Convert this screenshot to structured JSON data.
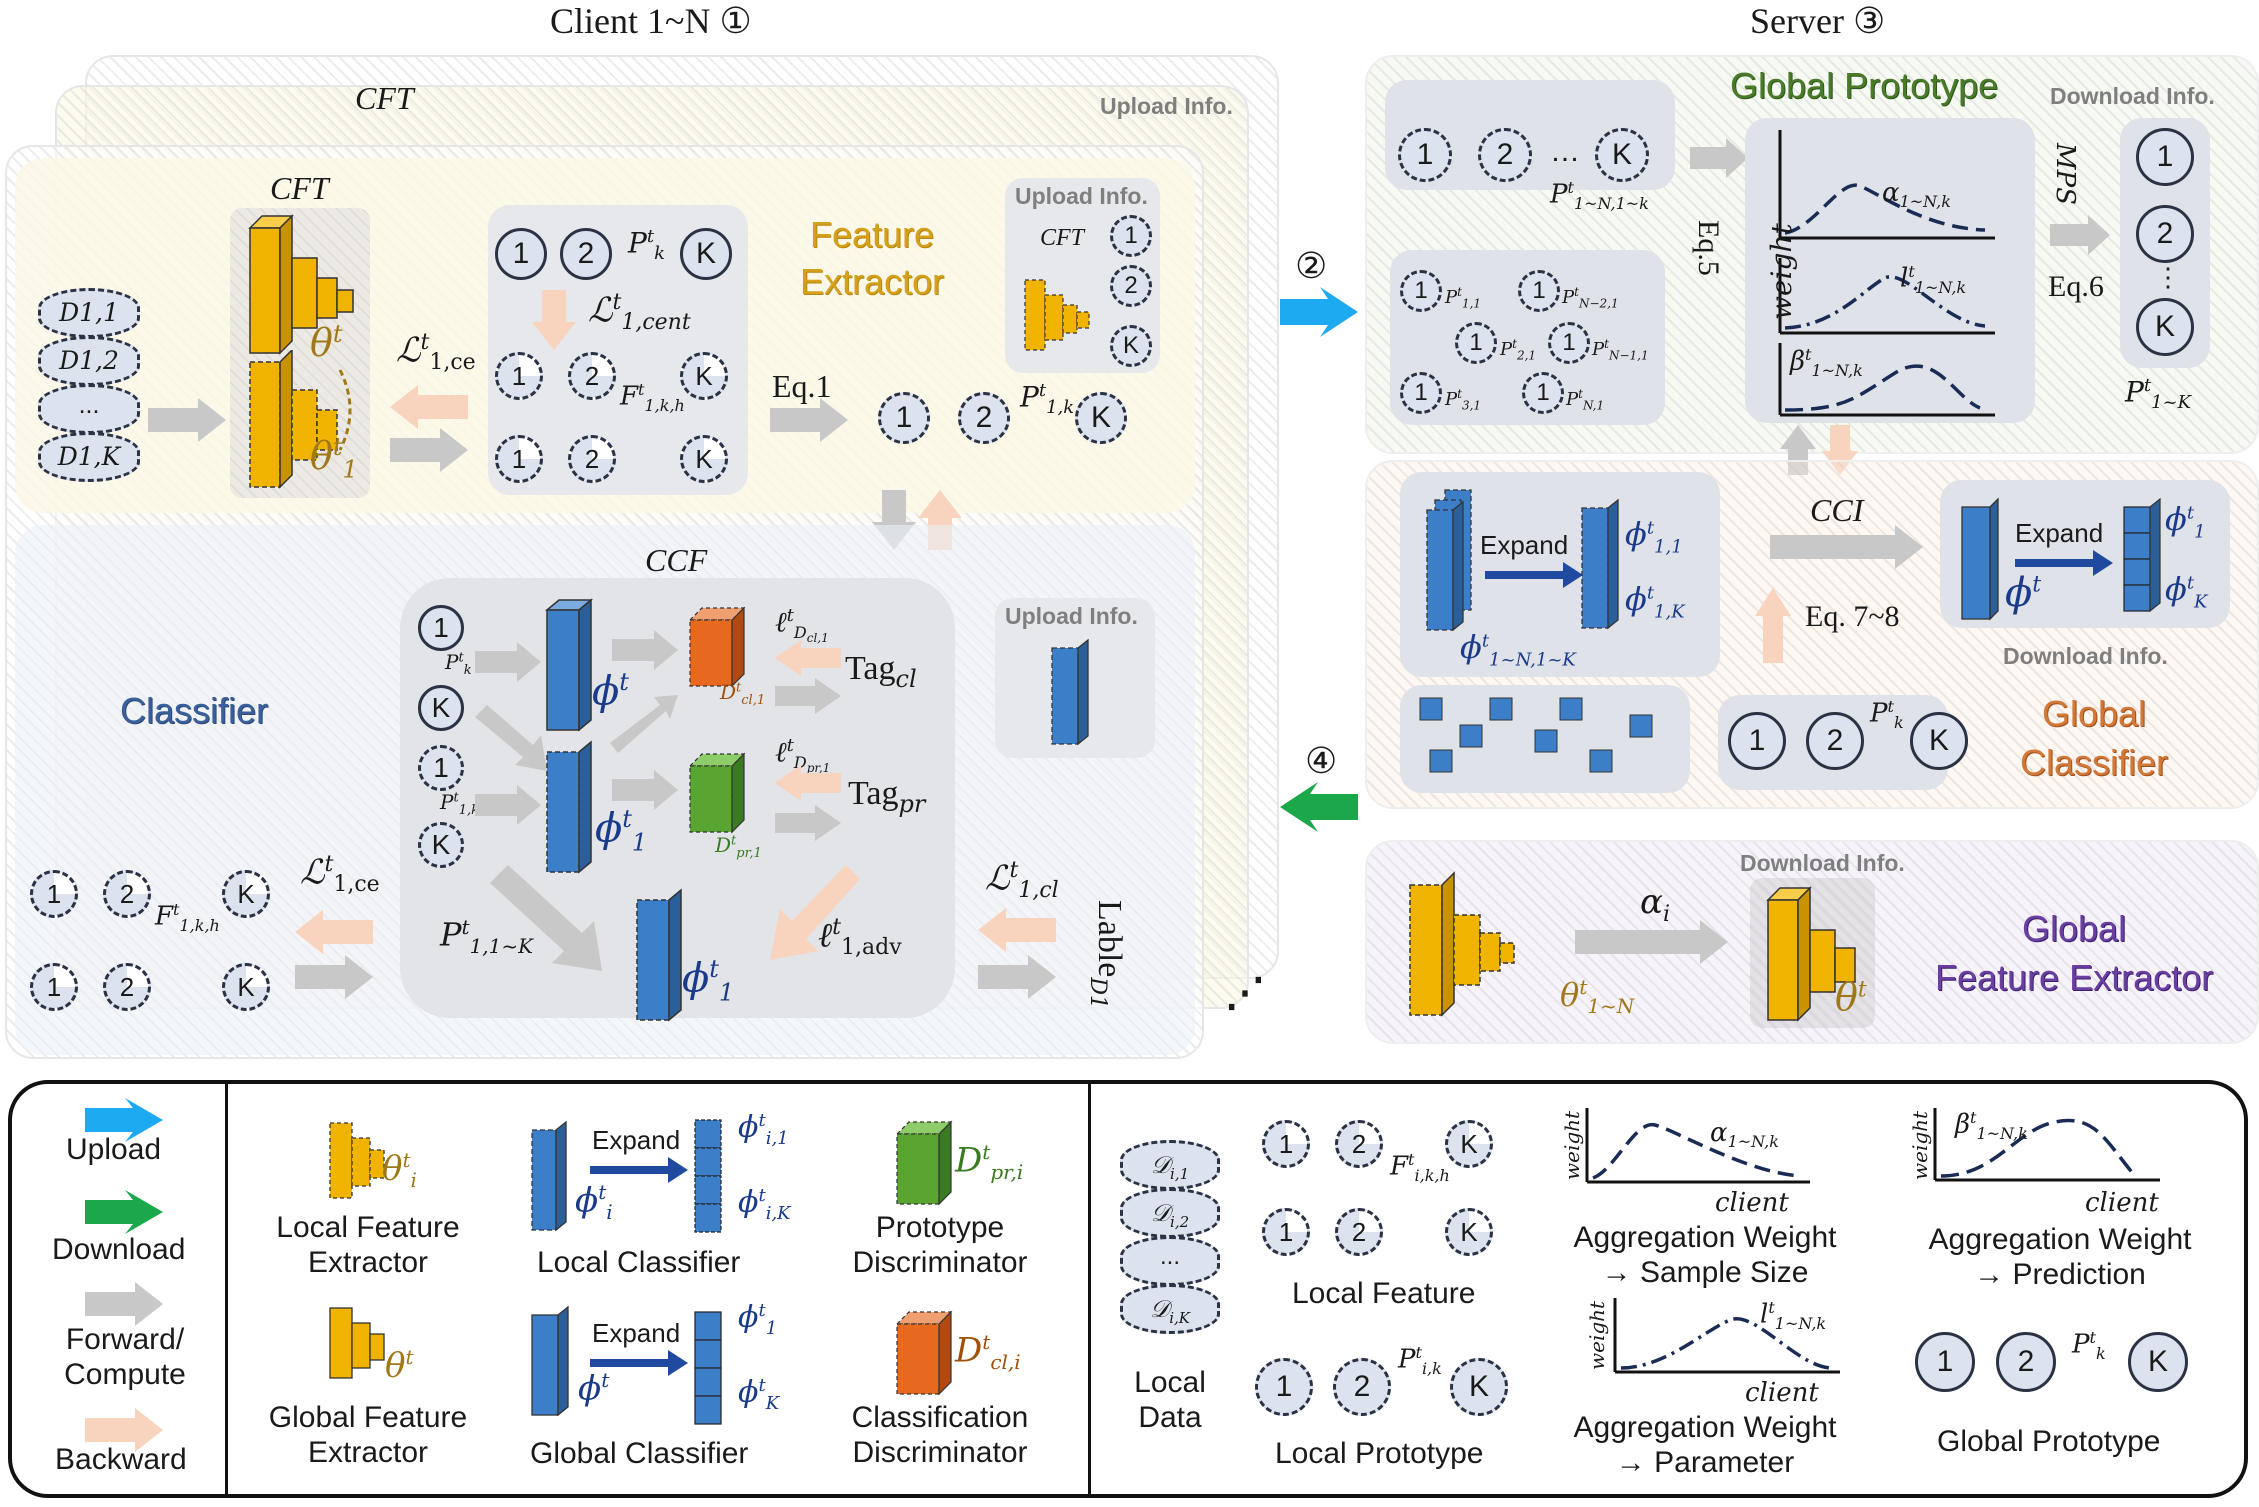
{
  "headings": {
    "client": "Client 1~N ①",
    "server": "Server ③",
    "step2": "②",
    "step4": "④"
  },
  "client": {
    "cft_back": "CFT",
    "cft": "CFT",
    "upload_info": "Upload Info.",
    "upload_info_cft": "CFT",
    "feature_extractor_1": "Feature",
    "feature_extractor_2": "Extractor",
    "eq1": "Eq.1",
    "ccf": "CCF",
    "classifier": "Classifier",
    "upload_info_2": "Upload Info.",
    "tag_cl": "Tag",
    "tag_cl_sub": "cl",
    "tag_pr": "Tag",
    "tag_pr_sub": "pr",
    "lable": "Lable",
    "lable_sub": "D1",
    "ellipsis": "⋰",
    "data_labels": [
      "D1,1",
      "D1,2",
      "...",
      "D1,K"
    ],
    "theta_t": "θ",
    "theta_1": "θ",
    "l_ce": "ℒ",
    "l_cent": "ℒ",
    "l_cl": "ℒ",
    "l_adv": "ℓ",
    "l_dcl": "ℓ",
    "l_dpr": "ℓ"
  },
  "server": {
    "global_prototype": "Global Prototype",
    "download_info_1": "Download Info.",
    "eq5": "Eq.5",
    "eq6": "Eq.6",
    "mps": "MPS",
    "weight": "weight",
    "alpha": "α",
    "l_param": "l",
    "beta": "β",
    "cci": "CCI",
    "expand": "Expand",
    "eq7_8": "Eq. 7~8",
    "download_info_2": "Download Info.",
    "global_classifier_1": "Global",
    "global_classifier_2": "Classifier",
    "download_info_3": "Download Info.",
    "global_fe_1": "Global",
    "global_fe_2": "Feature Extractor",
    "alpha_i": "α"
  },
  "legend": {
    "upload": "Upload",
    "download": "Download",
    "forward": "Forward/ Compute",
    "backward": "Backward",
    "local_fe": "Local Feature Extractor",
    "global_fe": "Global Feature Extractor",
    "local_classifier": "Local Classifier",
    "global_classifier": "Global Classifier",
    "expand": "Expand",
    "prototype_disc": "Prototype Discriminator",
    "class_disc": "Classification Discriminator",
    "local_data": "Local Data",
    "local_feature": "Local Feature",
    "local_prototype": "Local Prototype",
    "agg_sample": "Aggregation Weight → Sample Size",
    "agg_param": "Aggregation Weight → Parameter",
    "agg_pred": "Aggregation Weight → Prediction",
    "global_prototype": "Global Prototype",
    "weight": "weight",
    "client": "client"
  },
  "colors": {
    "upload": "#1eaaf0",
    "download": "#1ba84a",
    "forward": "#c8c8c8",
    "backward": "#f8d3bd",
    "feature_yellow": "#f0b400",
    "classifier_blue": "#3c7fc8",
    "prototype_green": "#5aa532",
    "class_orange": "#e6691e",
    "feature_text": "#d4a11d",
    "classifier_text": "#3a5f9a",
    "global_proto_text": "#4a7a2a",
    "global_class_text": "#d27838",
    "global_fe_text": "#6a3fa0"
  }
}
